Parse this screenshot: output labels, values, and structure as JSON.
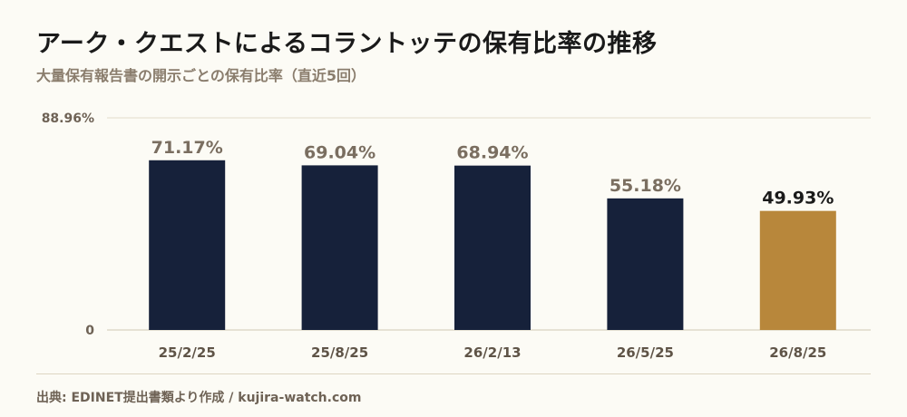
{
  "chart_data": {
    "type": "bar",
    "title": "アーク・クエストによるコラントッテの保有比率の推移",
    "subtitle": "大量保有報告書の開示ごとの保有比率（直近5回）",
    "categories": [
      "25/2/25",
      "25/8/25",
      "26/2/13",
      "26/5/25",
      "26/8/25"
    ],
    "values": [
      71.17,
      69.04,
      68.94,
      55.18,
      49.93
    ],
    "value_labels": [
      "71.17%",
      "69.04%",
      "68.94%",
      "55.18%",
      "49.93%"
    ],
    "y_ticks": [
      "88.96%",
      "0"
    ],
    "ylim": [
      0,
      88.96
    ],
    "grid": true,
    "colors": {
      "default_bar": "#16213a",
      "highlight_bar": "#b8873b",
      "default_label": "#7a6e60",
      "highlight_label": "#1a1a1a"
    },
    "highlight_index": 4
  },
  "source": "出典: EDINET提出書類より作成 / kujira-watch.com"
}
